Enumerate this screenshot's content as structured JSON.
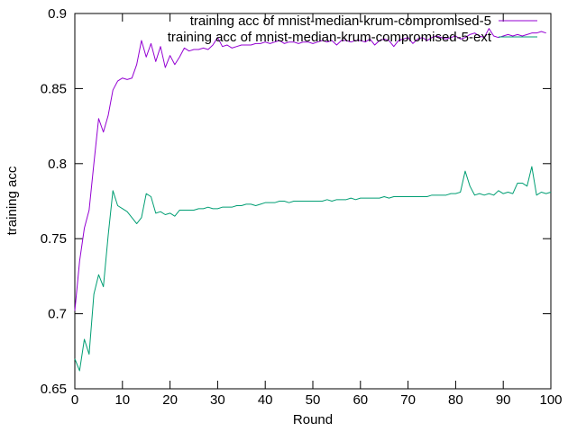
{
  "chart_data": {
    "type": "line",
    "title": "",
    "xlabel": "Round",
    "ylabel": "training acc",
    "xlim": [
      0,
      100
    ],
    "ylim": [
      0.65,
      0.9
    ],
    "xticks": [
      0,
      10,
      20,
      30,
      40,
      50,
      60,
      70,
      80,
      90,
      100
    ],
    "yticks": [
      0.65,
      0.7,
      0.75,
      0.8,
      0.85,
      0.9
    ],
    "xtick_labels": [
      "0",
      "10",
      "20",
      "30",
      "40",
      "50",
      "60",
      "70",
      "80",
      "90",
      "100"
    ],
    "ytick_labels": [
      "0.65",
      "0.7",
      "0.75",
      "0.8",
      "0.85",
      "0.9"
    ],
    "grid": false,
    "legend_position": "top-right",
    "series": [
      {
        "name": "training acc of mnist-median-krum-compromised-5",
        "color": "#9400d3",
        "values": [
          0.702,
          0.735,
          0.757,
          0.769,
          0.8,
          0.83,
          0.821,
          0.832,
          0.849,
          0.855,
          0.857,
          0.856,
          0.857,
          0.866,
          0.882,
          0.871,
          0.88,
          0.868,
          0.878,
          0.864,
          0.872,
          0.866,
          0.871,
          0.877,
          0.875,
          0.876,
          0.876,
          0.877,
          0.876,
          0.879,
          0.884,
          0.878,
          0.879,
          0.877,
          0.878,
          0.879,
          0.879,
          0.879,
          0.88,
          0.88,
          0.881,
          0.88,
          0.881,
          0.882,
          0.88,
          0.881,
          0.881,
          0.88,
          0.881,
          0.881,
          0.88,
          0.881,
          0.882,
          0.881,
          0.882,
          0.879,
          0.882,
          0.882,
          0.881,
          0.882,
          0.882,
          0.881,
          0.883,
          0.879,
          0.882,
          0.883,
          0.882,
          0.878,
          0.882,
          0.883,
          0.884,
          0.88,
          0.883,
          0.884,
          0.882,
          0.884,
          0.885,
          0.884,
          0.883,
          0.884,
          0.885,
          0.883,
          0.884,
          0.886,
          0.887,
          0.885,
          0.884,
          0.89,
          0.885,
          0.884,
          0.885,
          0.886,
          0.885,
          0.886,
          0.885,
          0.886,
          0.887,
          0.887,
          0.888,
          0.887
        ]
      },
      {
        "name": "training acc of mnist-median-krum-compromised-5-ext",
        "color": "#009e73",
        "values": [
          0.67,
          0.662,
          0.683,
          0.673,
          0.713,
          0.726,
          0.718,
          0.752,
          0.782,
          0.772,
          0.77,
          0.768,
          0.764,
          0.76,
          0.764,
          0.78,
          0.778,
          0.767,
          0.768,
          0.766,
          0.767,
          0.765,
          0.769,
          0.769,
          0.769,
          0.769,
          0.77,
          0.77,
          0.771,
          0.77,
          0.77,
          0.771,
          0.771,
          0.771,
          0.772,
          0.772,
          0.773,
          0.773,
          0.772,
          0.773,
          0.774,
          0.774,
          0.774,
          0.775,
          0.775,
          0.774,
          0.775,
          0.775,
          0.775,
          0.775,
          0.775,
          0.775,
          0.775,
          0.776,
          0.775,
          0.776,
          0.776,
          0.776,
          0.777,
          0.776,
          0.777,
          0.777,
          0.777,
          0.777,
          0.777,
          0.778,
          0.777,
          0.778,
          0.778,
          0.778,
          0.778,
          0.778,
          0.778,
          0.778,
          0.778,
          0.779,
          0.779,
          0.779,
          0.779,
          0.78,
          0.78,
          0.781,
          0.795,
          0.785,
          0.779,
          0.78,
          0.779,
          0.78,
          0.779,
          0.782,
          0.78,
          0.781,
          0.78,
          0.787,
          0.787,
          0.785,
          0.798,
          0.779,
          0.781,
          0.78,
          0.781
        ]
      }
    ]
  }
}
